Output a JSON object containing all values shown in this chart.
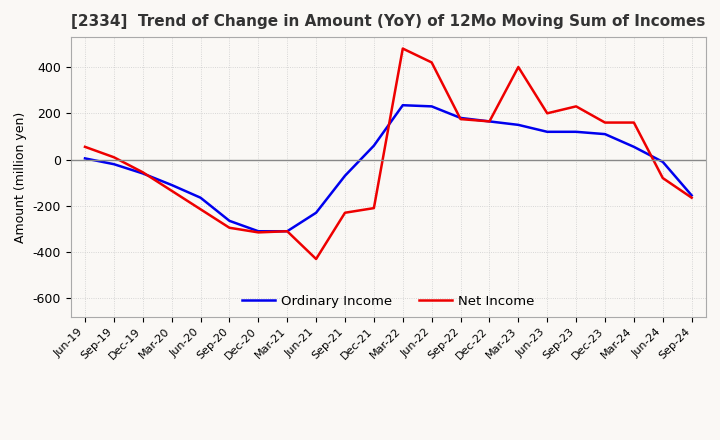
{
  "title": "[2334]  Trend of Change in Amount (YoY) of 12Mo Moving Sum of Incomes",
  "ylabel": "Amount (million yen)",
  "ylim": [
    -680,
    530
  ],
  "yticks": [
    -600,
    -400,
    -200,
    0,
    200,
    400
  ],
  "x_labels": [
    "Jun-19",
    "Sep-19",
    "Dec-19",
    "Mar-20",
    "Jun-20",
    "Sep-20",
    "Dec-20",
    "Mar-21",
    "Jun-21",
    "Sep-21",
    "Dec-21",
    "Mar-22",
    "Jun-22",
    "Sep-22",
    "Dec-22",
    "Mar-23",
    "Jun-23",
    "Sep-23",
    "Dec-23",
    "Mar-24",
    "Jun-24",
    "Sep-24"
  ],
  "ordinary_income": [
    5,
    -20,
    -60,
    -110,
    -165,
    -265,
    -310,
    -310,
    -230,
    -70,
    60,
    235,
    230,
    180,
    165,
    150,
    120,
    120,
    110,
    55,
    -10,
    -155
  ],
  "net_income": [
    55,
    10,
    -55,
    -135,
    -215,
    -295,
    -315,
    -310,
    -430,
    -230,
    -210,
    480,
    420,
    175,
    165,
    400,
    200,
    230,
    160,
    160,
    -80,
    -165
  ],
  "ordinary_color": "#0000ee",
  "net_color": "#ee0000",
  "grid_color": "#cccccc",
  "background_color": "#faf8f5",
  "line_width": 1.8,
  "legend_labels": [
    "Ordinary Income",
    "Net Income"
  ],
  "zero_line_color": "#888888"
}
